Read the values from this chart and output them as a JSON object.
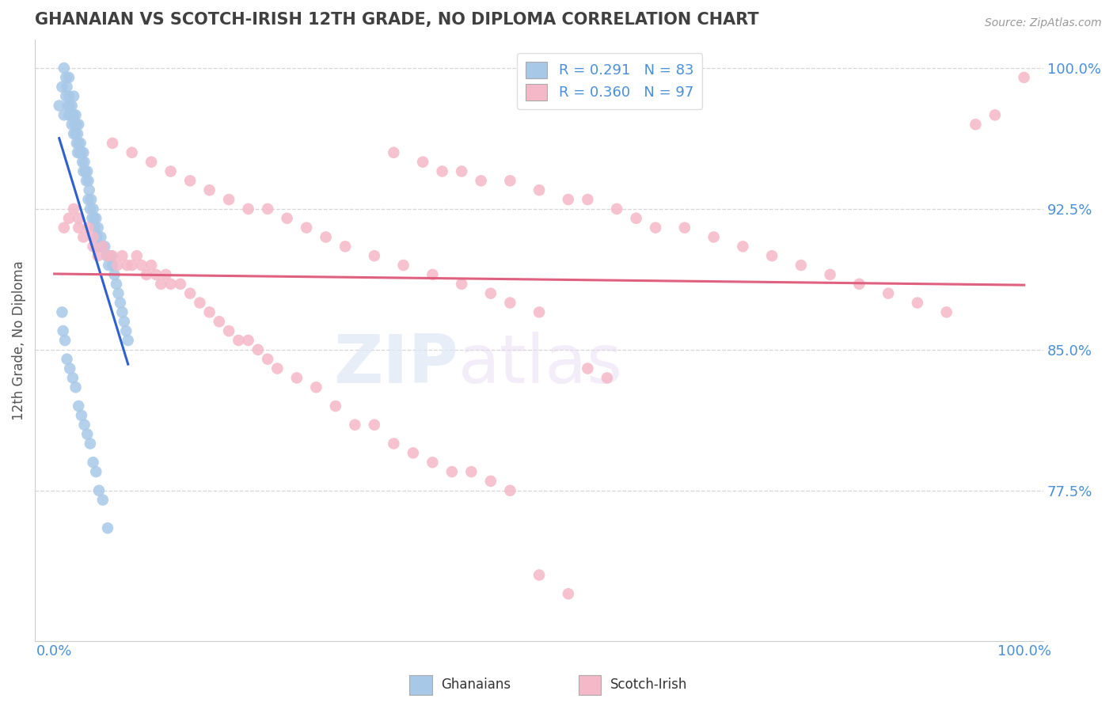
{
  "title": "GHANAIAN VS SCOTCH-IRISH 12TH GRADE, NO DIPLOMA CORRELATION CHART",
  "source_text": "Source: ZipAtlas.com",
  "ylabel": "12th Grade, No Diploma",
  "xlim": [
    -0.02,
    1.02
  ],
  "ylim": [
    0.695,
    1.015
  ],
  "x_ticks": [
    0.0,
    1.0
  ],
  "x_tick_labels": [
    "0.0%",
    "100.0%"
  ],
  "y_ticks": [
    0.775,
    0.85,
    0.925,
    1.0
  ],
  "y_tick_labels": [
    "77.5%",
    "85.0%",
    "92.5%",
    "100.0%"
  ],
  "ghanaian_color": "#a8c8e8",
  "scotch_irish_color": "#f5b8c8",
  "ghanaian_line_color": "#3060d0",
  "scotch_irish_line_color": "#e06080",
  "R_ghanaian": 0.291,
  "N_ghanaian": 83,
  "R_scotch_irish": 0.36,
  "N_scotch_irish": 97,
  "legend_label_ghanaians": "Ghanaians",
  "legend_label_scotch_irish": "Scotch-Irish",
  "title_color": "#404040",
  "axis_label_color": "#4a90d9",
  "watermark_zip": "ZIP",
  "watermark_atlas": "atlas",
  "ghanaian_x": [
    0.005,
    0.008,
    0.01,
    0.01,
    0.012,
    0.012,
    0.013,
    0.014,
    0.015,
    0.015,
    0.015,
    0.016,
    0.017,
    0.018,
    0.018,
    0.019,
    0.02,
    0.02,
    0.02,
    0.021,
    0.022,
    0.022,
    0.023,
    0.023,
    0.024,
    0.024,
    0.025,
    0.025,
    0.026,
    0.027,
    0.028,
    0.029,
    0.03,
    0.03,
    0.031,
    0.032,
    0.033,
    0.034,
    0.035,
    0.035,
    0.036,
    0.037,
    0.038,
    0.039,
    0.04,
    0.041,
    0.042,
    0.043,
    0.044,
    0.045,
    0.046,
    0.048,
    0.05,
    0.052,
    0.054,
    0.056,
    0.058,
    0.06,
    0.062,
    0.064,
    0.066,
    0.068,
    0.07,
    0.072,
    0.074,
    0.076,
    0.008,
    0.009,
    0.011,
    0.013,
    0.016,
    0.019,
    0.022,
    0.025,
    0.028,
    0.031,
    0.034,
    0.037,
    0.04,
    0.043,
    0.046,
    0.05,
    0.055
  ],
  "ghanaian_y": [
    0.98,
    0.99,
    1.0,
    0.975,
    0.995,
    0.985,
    0.99,
    0.98,
    0.995,
    0.985,
    0.975,
    0.98,
    0.975,
    0.98,
    0.97,
    0.975,
    0.985,
    0.975,
    0.965,
    0.97,
    0.975,
    0.965,
    0.97,
    0.96,
    0.965,
    0.955,
    0.97,
    0.96,
    0.955,
    0.96,
    0.955,
    0.95,
    0.955,
    0.945,
    0.95,
    0.945,
    0.94,
    0.945,
    0.94,
    0.93,
    0.935,
    0.925,
    0.93,
    0.92,
    0.925,
    0.92,
    0.915,
    0.92,
    0.91,
    0.915,
    0.905,
    0.91,
    0.905,
    0.905,
    0.9,
    0.895,
    0.9,
    0.895,
    0.89,
    0.885,
    0.88,
    0.875,
    0.87,
    0.865,
    0.86,
    0.855,
    0.87,
    0.86,
    0.855,
    0.845,
    0.84,
    0.835,
    0.83,
    0.82,
    0.815,
    0.81,
    0.805,
    0.8,
    0.79,
    0.785,
    0.775,
    0.77,
    0.755
  ],
  "scotch_irish_x": [
    0.01,
    0.015,
    0.02,
    0.025,
    0.025,
    0.03,
    0.035,
    0.04,
    0.04,
    0.045,
    0.05,
    0.055,
    0.06,
    0.065,
    0.07,
    0.075,
    0.08,
    0.085,
    0.09,
    0.095,
    0.1,
    0.105,
    0.11,
    0.115,
    0.12,
    0.13,
    0.14,
    0.15,
    0.16,
    0.17,
    0.18,
    0.19,
    0.2,
    0.21,
    0.22,
    0.23,
    0.25,
    0.27,
    0.29,
    0.31,
    0.33,
    0.35,
    0.37,
    0.39,
    0.41,
    0.43,
    0.45,
    0.47,
    0.5,
    0.53,
    0.55,
    0.57,
    0.35,
    0.38,
    0.4,
    0.42,
    0.44,
    0.47,
    0.5,
    0.53,
    0.55,
    0.58,
    0.6,
    0.62,
    0.65,
    0.68,
    0.71,
    0.74,
    0.77,
    0.8,
    0.83,
    0.86,
    0.89,
    0.92,
    0.95,
    0.97,
    1.0,
    0.06,
    0.08,
    0.1,
    0.12,
    0.14,
    0.16,
    0.18,
    0.2,
    0.22,
    0.24,
    0.26,
    0.28,
    0.3,
    0.33,
    0.36,
    0.39,
    0.42,
    0.45,
    0.47,
    0.5
  ],
  "scotch_irish_y": [
    0.915,
    0.92,
    0.925,
    0.915,
    0.92,
    0.91,
    0.915,
    0.905,
    0.91,
    0.9,
    0.905,
    0.9,
    0.9,
    0.895,
    0.9,
    0.895,
    0.895,
    0.9,
    0.895,
    0.89,
    0.895,
    0.89,
    0.885,
    0.89,
    0.885,
    0.885,
    0.88,
    0.875,
    0.87,
    0.865,
    0.86,
    0.855,
    0.855,
    0.85,
    0.845,
    0.84,
    0.835,
    0.83,
    0.82,
    0.81,
    0.81,
    0.8,
    0.795,
    0.79,
    0.785,
    0.785,
    0.78,
    0.775,
    0.73,
    0.72,
    0.84,
    0.835,
    0.955,
    0.95,
    0.945,
    0.945,
    0.94,
    0.94,
    0.935,
    0.93,
    0.93,
    0.925,
    0.92,
    0.915,
    0.915,
    0.91,
    0.905,
    0.9,
    0.895,
    0.89,
    0.885,
    0.88,
    0.875,
    0.87,
    0.97,
    0.975,
    0.995,
    0.96,
    0.955,
    0.95,
    0.945,
    0.94,
    0.935,
    0.93,
    0.925,
    0.925,
    0.92,
    0.915,
    0.91,
    0.905,
    0.9,
    0.895,
    0.89,
    0.885,
    0.88,
    0.875,
    0.87
  ]
}
